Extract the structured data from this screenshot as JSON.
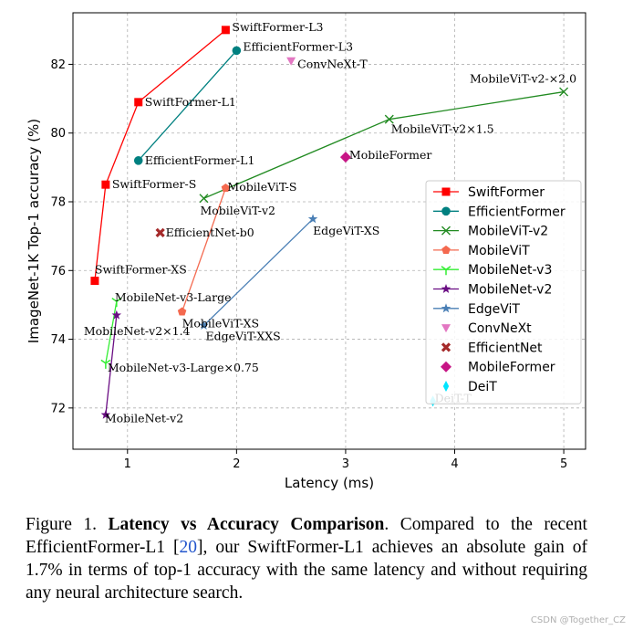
{
  "chart_data": {
    "type": "scatter",
    "xlabel": "Latency (ms)",
    "ylabel": "ImageNet-1K Top-1 accuracy (%)",
    "xlim": [
      0.5,
      5.2
    ],
    "ylim": [
      70.8,
      83.5
    ],
    "xticks": [
      1,
      2,
      3,
      4,
      5
    ],
    "yticks": [
      72,
      74,
      76,
      78,
      80,
      82
    ],
    "grid": true,
    "legend_position": "right",
    "series": [
      {
        "name": "SwiftFormer",
        "color": "#ff0000",
        "marker": "square",
        "connected": true,
        "points": [
          {
            "x": 0.7,
            "y": 75.7,
            "label": "SwiftFormer-XS"
          },
          {
            "x": 0.8,
            "y": 78.5,
            "label": "SwiftFormer-S"
          },
          {
            "x": 1.1,
            "y": 80.9,
            "label": "SwiftFormer-L1"
          },
          {
            "x": 1.9,
            "y": 83.0,
            "label": "SwiftFormer-L3"
          }
        ]
      },
      {
        "name": "EfficientFormer",
        "color": "#008080",
        "marker": "circle",
        "connected": true,
        "points": [
          {
            "x": 1.1,
            "y": 79.2,
            "label": "EfficientFormer-L1"
          },
          {
            "x": 2.0,
            "y": 82.4,
            "label": "EfficientFormer-L3"
          }
        ]
      },
      {
        "name": "MobileViT-v2",
        "color": "#228b22",
        "marker": "x",
        "connected": true,
        "points": [
          {
            "x": 1.7,
            "y": 78.1,
            "label": "MobileViT-v2"
          },
          {
            "x": 3.4,
            "y": 80.4,
            "label": "MobileViT-v2×1.5"
          },
          {
            "x": 5.0,
            "y": 81.2,
            "label": "MobileViT-v2-×2.0"
          }
        ]
      },
      {
        "name": "MobileViT",
        "color": "#f4694f",
        "marker": "pentagon",
        "connected": true,
        "points": [
          {
            "x": 1.5,
            "y": 74.8,
            "label": "MobileViT-XS"
          },
          {
            "x": 1.9,
            "y": 78.4,
            "label": "MobileViT-S"
          }
        ]
      },
      {
        "name": "MobileNet-v3",
        "color": "#33ee33",
        "marker": "tri",
        "connected": true,
        "points": [
          {
            "x": 0.8,
            "y": 73.3,
            "label": "MobileNet-v3-Large×0.75"
          },
          {
            "x": 0.9,
            "y": 75.1,
            "label": "MobileNet-v3-Large"
          }
        ]
      },
      {
        "name": "MobileNet-v2",
        "color": "#6a0d83",
        "marker": "star",
        "connected": true,
        "points": [
          {
            "x": 0.8,
            "y": 71.8,
            "label": "MobileNet-v2"
          },
          {
            "x": 0.9,
            "y": 74.7,
            "label": "MobileNet-v2×1.4"
          }
        ]
      },
      {
        "name": "EdgeViT",
        "color": "#4a7fb5",
        "marker": "star",
        "connected": true,
        "points": [
          {
            "x": 1.7,
            "y": 74.4,
            "label": "EdgeViT-XXS"
          },
          {
            "x": 2.7,
            "y": 77.5,
            "label": "EdgeViT-XS"
          }
        ]
      },
      {
        "name": "ConvNeXt",
        "color": "#e377c2",
        "marker": "triangle-down",
        "connected": false,
        "points": [
          {
            "x": 2.5,
            "y": 82.1,
            "label": "ConvNeXt-T"
          }
        ]
      },
      {
        "name": "EfficientNet",
        "color": "#a52a2a",
        "marker": "x-bold",
        "connected": false,
        "points": [
          {
            "x": 1.3,
            "y": 77.1,
            "label": "EfficientNet-b0"
          }
        ]
      },
      {
        "name": "MobileFormer",
        "color": "#c71585",
        "marker": "diamond",
        "connected": false,
        "points": [
          {
            "x": 3.0,
            "y": 79.3,
            "label": "MobileFormer"
          }
        ]
      },
      {
        "name": "DeiT",
        "color": "#00e5ff",
        "marker": "thin-diamond",
        "connected": false,
        "points": [
          {
            "x": 3.8,
            "y": 72.2,
            "label": "DeiT-T"
          }
        ]
      }
    ]
  },
  "caption": {
    "prefix": "Figure 1. ",
    "bold": "Latency vs Accuracy Comparison",
    "text1": ". Compared to the recent EfficientFormer-L1 [",
    "ref": "20",
    "text2": "], our SwiftFormer-L1 achieves an absolute gain of 1.7% in terms of top-1 accuracy with the same latency and without requiring any neural architecture search."
  },
  "watermark": "CSDN @Together_CZ"
}
